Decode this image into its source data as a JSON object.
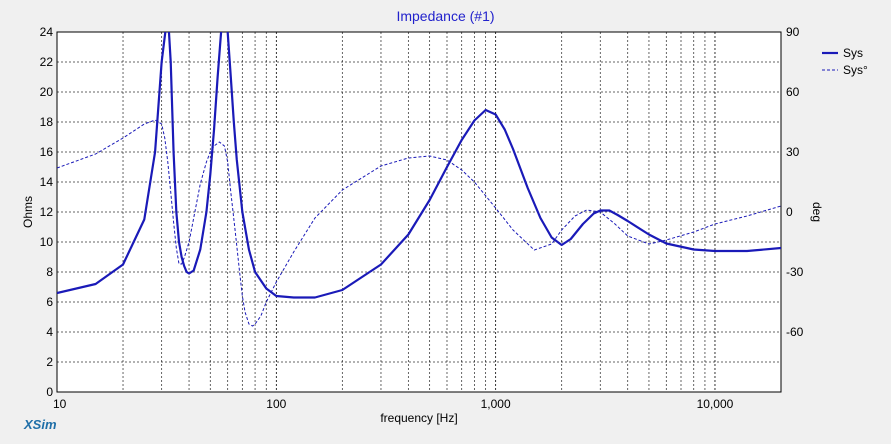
{
  "chart_data": {
    "type": "line",
    "title": "Impedance (#1)",
    "xlabel": "frequency [Hz]",
    "ylabel": "Ohms",
    "y2label": "deg",
    "xscale": "log",
    "xlim": [
      10,
      20000
    ],
    "ylim": [
      0,
      24
    ],
    "y2lim": [
      -90,
      90
    ],
    "xticks": [
      {
        "value": 10,
        "label": "10"
      },
      {
        "value": 100,
        "label": "100"
      },
      {
        "value": 1000,
        "label": "1,000"
      },
      {
        "value": 10000,
        "label": "10,000"
      }
    ],
    "yticks": [
      0,
      2,
      4,
      6,
      8,
      10,
      12,
      14,
      16,
      18,
      20,
      22,
      24
    ],
    "y2ticks": [
      -60,
      -30,
      0,
      30,
      60,
      90
    ],
    "grid": true,
    "legend": {
      "position": "top-right"
    },
    "series": [
      {
        "name": "Sys",
        "axis": "left",
        "style": "solid",
        "color": "#1a1ab8",
        "x": [
          10,
          15,
          20,
          25,
          28,
          30,
          32,
          33,
          34,
          35,
          36,
          37,
          38,
          39,
          40,
          42,
          45,
          48,
          50,
          52,
          54,
          56,
          58,
          60,
          62,
          64,
          66,
          70,
          75,
          80,
          90,
          100,
          120,
          150,
          200,
          300,
          400,
          500,
          600,
          700,
          800,
          900,
          1000,
          1100,
          1200,
          1400,
          1600,
          1800,
          2000,
          2200,
          2500,
          2800,
          3000,
          3300,
          3600,
          4000,
          5000,
          6000,
          8000,
          10000,
          14000,
          20000
        ],
        "y": [
          6.6,
          7.2,
          8.5,
          11.5,
          16.0,
          22.0,
          26.0,
          22.0,
          16.0,
          12.0,
          10.0,
          9.0,
          8.4,
          8.0,
          7.9,
          8.1,
          9.5,
          12.0,
          14.5,
          17.5,
          21.0,
          24.0,
          26.0,
          24.0,
          21.0,
          18.0,
          15.5,
          12.0,
          9.5,
          8.0,
          6.9,
          6.4,
          6.3,
          6.3,
          6.8,
          8.5,
          10.5,
          12.8,
          15.0,
          16.8,
          18.1,
          18.8,
          18.5,
          17.5,
          16.2,
          13.6,
          11.6,
          10.3,
          9.8,
          10.2,
          11.2,
          11.9,
          12.1,
          12.1,
          11.8,
          11.4,
          10.5,
          9.9,
          9.5,
          9.4,
          9.4,
          9.6
        ]
      },
      {
        "name": "Sys°",
        "axis": "right",
        "style": "dashed",
        "color": "#1a1ab8",
        "x": [
          10,
          15,
          20,
          25,
          28,
          30,
          31,
          32,
          33,
          34,
          35,
          36,
          37,
          38,
          40,
          42,
          45,
          48,
          50,
          52,
          55,
          58,
          60,
          62,
          65,
          68,
          70,
          72,
          75,
          78,
          80,
          85,
          90,
          100,
          120,
          150,
          200,
          300,
          400,
          500,
          600,
          700,
          800,
          1000,
          1200,
          1500,
          1800,
          2000,
          2300,
          2600,
          3000,
          3500,
          4000,
          5000,
          6000,
          8000,
          10000,
          14000,
          20000
        ],
        "y": [
          22,
          29,
          37,
          44,
          46,
          44,
          37,
          25,
          10,
          -5,
          -18,
          -26,
          -26,
          -23,
          -15,
          -3,
          14,
          25,
          30,
          33,
          35,
          33,
          25,
          10,
          -10,
          -30,
          -42,
          -50,
          -56,
          -57,
          -56,
          -52,
          -45,
          -35,
          -20,
          -3,
          11,
          23,
          27,
          28,
          26,
          21,
          15,
          2,
          -9,
          -19,
          -16,
          -9,
          -2,
          1,
          0,
          -6,
          -12,
          -16,
          -14,
          -10,
          -6,
          -2,
          3
        ]
      }
    ]
  },
  "brand": "XSim"
}
